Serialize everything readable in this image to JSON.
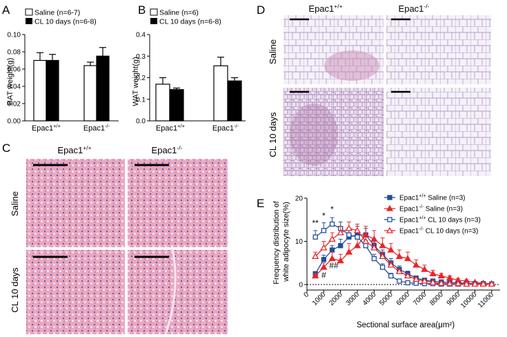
{
  "panels": {
    "A": {
      "letter": "A",
      "legend": [
        "Saline (n=6-7)",
        "CL 10 days (n=6-8)"
      ],
      "ylabel": "BAT weight(g)",
      "yticks": [
        "0.00",
        "0.02",
        "0.04",
        "0.06",
        "0.08",
        "0.10"
      ],
      "ylim": [
        0,
        0.1
      ],
      "groups": [
        "Epac1",
        "Epac1"
      ],
      "group_sup": [
        "+/+",
        "-/-"
      ],
      "chart_data": {
        "type": "bar",
        "categories": [
          "Epac1+/+",
          "Epac1-/-"
        ],
        "series": [
          {
            "name": "Saline (n=6-7)",
            "values": [
              0.07,
              0.064
            ],
            "errors": [
              0.009,
              0.004
            ],
            "color": "#ffffff"
          },
          {
            "name": "CL 10 days (n=6-8)",
            "values": [
              0.07,
              0.075
            ],
            "errors": [
              0.007,
              0.01
            ],
            "color": "#000000"
          }
        ]
      }
    },
    "B": {
      "letter": "B",
      "legend": [
        "Saline (n=6)",
        "CL 10 days (n=6-8)"
      ],
      "ylabel": "WAT weight(g)",
      "yticks": [
        "0.0",
        "0.1",
        "0.2",
        "0.3",
        "0.4"
      ],
      "ylim": [
        0,
        0.4
      ],
      "groups": [
        "Epac1",
        "Epac1"
      ],
      "group_sup": [
        "+/+",
        "-/-"
      ],
      "chart_data": {
        "type": "bar",
        "categories": [
          "Epac1+/+",
          "Epac1-/-"
        ],
        "series": [
          {
            "name": "Saline (n=6)",
            "values": [
              0.17,
              0.255
            ],
            "errors": [
              0.03,
              0.04
            ],
            "color": "#ffffff"
          },
          {
            "name": "CL 10 days (n=6-8)",
            "values": [
              0.145,
              0.185
            ],
            "errors": [
              0.007,
              0.015
            ],
            "color": "#000000"
          }
        ]
      }
    },
    "C": {
      "letter": "C",
      "col_base": [
        "Epac1",
        "Epac1"
      ],
      "col_sup": [
        "+/+",
        "-/-"
      ],
      "rows": [
        "Saline",
        "CL 10 days"
      ]
    },
    "D": {
      "letter": "D",
      "col_base": [
        "Epac1",
        "Epac1"
      ],
      "col_sup": [
        "+/+",
        "-/-"
      ],
      "rows": [
        "Saline",
        "CL 10 days"
      ]
    },
    "E": {
      "letter": "E",
      "ylabel_lines": [
        "Frequency distribution of",
        "white adipocyte size(%)"
      ],
      "xlabel": "Sectional surface area(μm²)",
      "yticks": [
        "0",
        "10",
        "20"
      ],
      "ylim": [
        0,
        20
      ],
      "xticks": [
        "0",
        "1000",
        "2000",
        "3000",
        "4000",
        "5000",
        "6000",
        "7000",
        "8000",
        "9000",
        "10000",
        "11000"
      ],
      "legend": [
        {
          "base": "Epac1",
          "sup": "+/+",
          "rest": " Saline (n=3)"
        },
        {
          "base": "Epac1",
          "sup": "-/-",
          "rest": " Saline (n=3)"
        },
        {
          "base": "Epac1",
          "sup": "+/+",
          "rest": " CL 10 days (n=3)"
        },
        {
          "base": "Epac1",
          "sup": "-/-",
          "rest": " CL 10 days (n=3)"
        }
      ],
      "annotations": [
        {
          "text": "**",
          "x": 500,
          "y": 13.6
        },
        {
          "text": "*",
          "x": 1000,
          "y": 15.3
        },
        {
          "text": "*",
          "x": 1500,
          "y": 16.8
        },
        {
          "text": "##",
          "x": 1600,
          "y": 3.8
        },
        {
          "text": "#",
          "x": 1000,
          "y": 1.5
        }
      ],
      "chart_data": {
        "type": "line",
        "x": [
          500,
          1000,
          1500,
          2000,
          2500,
          3000,
          3500,
          4000,
          4500,
          5000,
          5500,
          6000,
          6500,
          7000,
          7500,
          8000,
          8500,
          9000,
          9500,
          10000,
          10500,
          11000
        ],
        "series": [
          {
            "name": "Epac1+/+ Saline (n=3)",
            "color": "#1f4e9c",
            "marker": "square-filled",
            "values": [
              2.5,
              5.8,
              8.0,
              9.0,
              11.0,
              11.5,
              11.5,
              9.0,
              7.0,
              5.0,
              3.5,
              2.5,
              1.5,
              1.0,
              0.8,
              0.6,
              0.5,
              0.4,
              0.3,
              0.2,
              0.2,
              0.1
            ],
            "errors": [
              0.5,
              1.0,
              1.0,
              1.5,
              2.0,
              2.0,
              1.5,
              1.5,
              1.0,
              1.0,
              0.8,
              0.6,
              0.5,
              0.4,
              0.3,
              0.3,
              0.2,
              0.2,
              0.2,
              0.1,
              0.1,
              0.1
            ]
          },
          {
            "name": "Epac1-/- Saline (n=3)",
            "color": "#e8262a",
            "marker": "triangle-filled",
            "values": [
              2.0,
              4.0,
              6.0,
              5.5,
              7.5,
              9.0,
              11.5,
              10.5,
              9.0,
              8.0,
              6.5,
              6.0,
              4.5,
              3.5,
              2.5,
              2.0,
              1.5,
              1.0,
              0.8,
              0.5,
              0.3,
              0.2
            ],
            "errors": [
              0.5,
              1.0,
              1.5,
              1.5,
              2.0,
              2.0,
              2.0,
              2.0,
              1.8,
              1.5,
              1.5,
              1.5,
              1.2,
              1.0,
              0.8,
              0.6,
              0.5,
              0.4,
              0.3,
              0.2,
              0.2,
              0.1
            ]
          },
          {
            "name": "Epac1+/+ CL 10 days (n=3)",
            "color": "#1f4e9c",
            "marker": "square-open",
            "values": [
              11.0,
              12.5,
              14.0,
              13.0,
              11.5,
              11.0,
              9.0,
              6.0,
              4.0,
              2.0,
              0.8,
              0.4,
              0.3,
              0.2,
              0.2,
              0.1,
              0.1,
              0.1,
              0.1,
              0.1,
              0.1,
              0.1
            ],
            "errors": [
              1.5,
              1.8,
              1.5,
              1.5,
              1.5,
              1.5,
              1.2,
              1.0,
              0.8,
              0.6,
              0.4,
              0.2,
              0.2,
              0.1,
              0.1,
              0.1,
              0.1,
              0.1,
              0.1,
              0.1,
              0.1,
              0.1
            ]
          },
          {
            "name": "Epac1-/- CL 10 days (n=3)",
            "color": "#e8262a",
            "marker": "triangle-open",
            "values": [
              6.5,
              8.5,
              10.5,
              12.0,
              13.0,
              12.5,
              10.0,
              8.5,
              6.5,
              4.5,
              3.0,
              2.0,
              1.2,
              0.8,
              0.5,
              0.3,
              0.2,
              0.2,
              0.1,
              0.1,
              0.1,
              0.1
            ],
            "errors": [
              1.0,
              1.5,
              1.5,
              1.5,
              1.5,
              1.5,
              1.5,
              1.2,
              1.0,
              0.8,
              0.6,
              0.4,
              0.3,
              0.2,
              0.2,
              0.1,
              0.1,
              0.1,
              0.1,
              0.1,
              0.1,
              0.1
            ]
          }
        ]
      }
    }
  }
}
